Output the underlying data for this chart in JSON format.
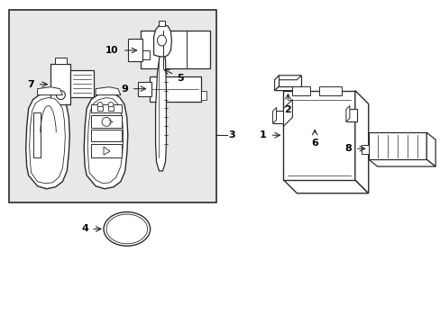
{
  "background_color": "#ffffff",
  "box_bg": "#e8e8e8",
  "line_color": "#2a2a2a",
  "label_color": "#000000",
  "fig_width": 4.89,
  "fig_height": 3.6,
  "dpi": 100
}
